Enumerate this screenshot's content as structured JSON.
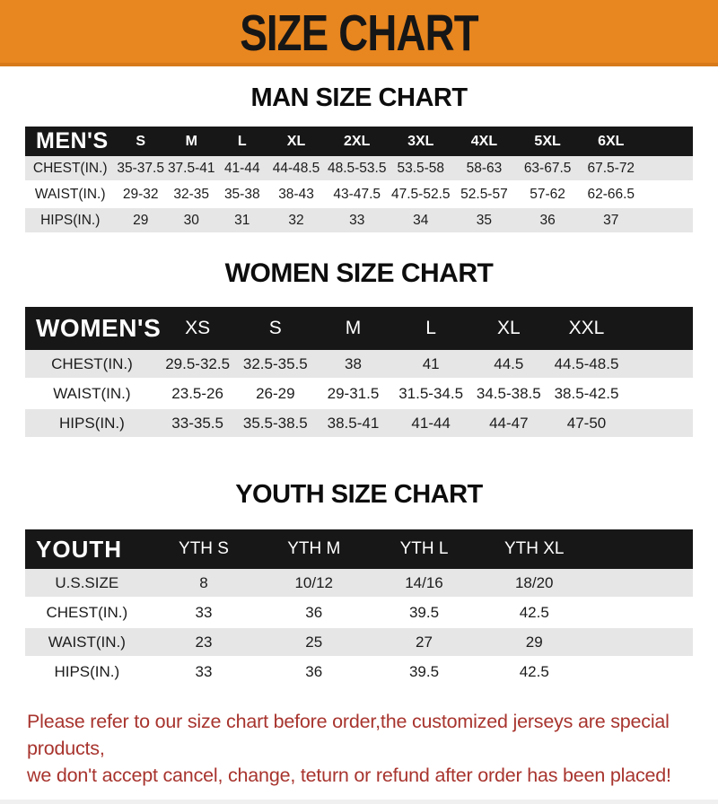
{
  "banner": {
    "title": "SIZE CHART"
  },
  "sections": [
    {
      "title": "MAN SIZE CHART",
      "label": "MEN'S",
      "columns": [
        "S",
        "M",
        "L",
        "XL",
        "2XL",
        "3XL",
        "4XL",
        "5XL",
        "6XL"
      ],
      "rows": [
        {
          "label": "CHEST(IN.)",
          "values": [
            "35-37.5",
            "37.5-41",
            "41-44",
            "44-48.5",
            "48.5-53.5",
            "53.5-58",
            "58-63",
            "63-67.5",
            "67.5-72"
          ]
        },
        {
          "label": "WAIST(IN.)",
          "values": [
            "29-32",
            "32-35",
            "35-38",
            "38-43",
            "43-47.5",
            "47.5-52.5",
            "52.5-57",
            "57-62",
            "62-66.5"
          ]
        },
        {
          "label": "HIPS(IN.)",
          "values": [
            "29",
            "30",
            "31",
            "32",
            "33",
            "34",
            "35",
            "36",
            "37"
          ]
        }
      ]
    },
    {
      "title": "WOMEN SIZE CHART",
      "label": "WOMEN'S",
      "columns": [
        "XS",
        "S",
        "M",
        "L",
        "XL",
        "XXL"
      ],
      "rows": [
        {
          "label": "CHEST(IN.)",
          "values": [
            "29.5-32.5",
            "32.5-35.5",
            "38",
            "41",
            "44.5",
            "44.5-48.5"
          ]
        },
        {
          "label": "WAIST(IN.)",
          "values": [
            "23.5-26",
            "26-29",
            "29-31.5",
            "31.5-34.5",
            "34.5-38.5",
            "38.5-42.5"
          ]
        },
        {
          "label": "HIPS(IN.)",
          "values": [
            "33-35.5",
            "35.5-38.5",
            "38.5-41",
            "41-44",
            "44-47",
            "47-50"
          ]
        }
      ]
    },
    {
      "title": "YOUTH SIZE CHART",
      "label": "YOUTH",
      "columns": [
        "YTH S",
        "YTH M",
        "YTH L",
        "YTH XL"
      ],
      "rows": [
        {
          "label": "U.S.SIZE",
          "values": [
            "8",
            "10/12",
            "14/16",
            "18/20"
          ]
        },
        {
          "label": "CHEST(IN.)",
          "values": [
            "33",
            "36",
            "39.5",
            "42.5"
          ]
        },
        {
          "label": "WAIST(IN.)",
          "values": [
            "23",
            "25",
            "27",
            "29"
          ]
        },
        {
          "label": "HIPS(IN.)",
          "values": [
            "33",
            "36",
            "39.5",
            "42.5"
          ]
        }
      ]
    }
  ],
  "footer": {
    "line1": "Please refer to our size chart before order,the customized jerseys are special products,",
    "line2": "we don't accept cancel, change, teturn or refund after order has been placed!"
  },
  "colors": {
    "banner_bg": "#E8861F",
    "banner_text": "#161616",
    "header_bar_bg": "#171717",
    "header_bar_text": "#FFFFFF",
    "row_stripe": "#E6E6E6",
    "body_text": "#1C1C1C",
    "footer_text": "#A8342E"
  }
}
